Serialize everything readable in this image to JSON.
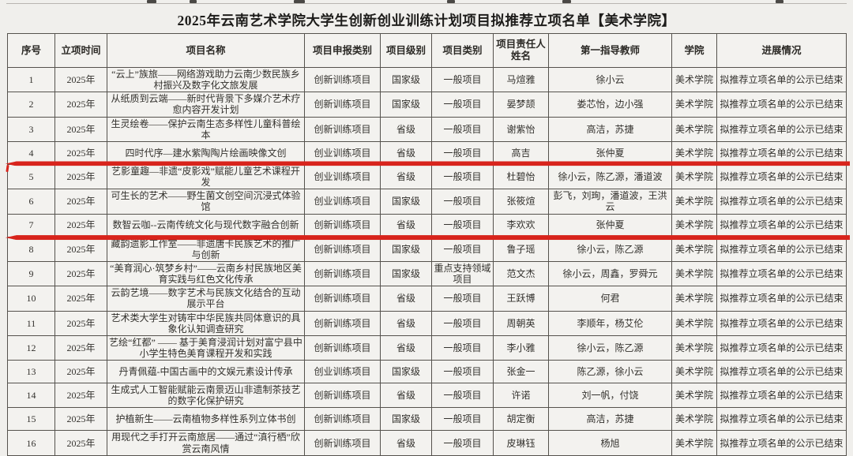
{
  "page": {
    "title": "2025年云南艺术学院大学生创新创业训练计划项目拟推荐立项名单【美术学院】"
  },
  "table": {
    "headers": [
      "序号",
      "立项时间",
      "项目名称",
      "项目申报类别",
      "项目级别",
      "项目类别",
      "项目责任人姓名",
      "第一指导教师",
      "学院",
      "进展情况"
    ],
    "rows": [
      [
        "1",
        "2025年",
        "“云上”族旅——网络游戏助力云南少数民族乡村振兴及数字化文旅发展",
        "创新训练项目",
        "国家级",
        "一般项目",
        "马煊雅",
        "徐小云",
        "美术学院",
        "拟推荐立项名单的公示已结束"
      ],
      [
        "2",
        "2025年",
        "从纸质到云端——新时代背景下多媒介艺术疗愈内容开发计划",
        "创新训练项目",
        "国家级",
        "一般项目",
        "晏梦颉",
        "娄芯怡，边小强",
        "美术学院",
        "拟推荐立项名单的公示已结束"
      ],
      [
        "3",
        "2025年",
        "生灵绘卷——保护云南生态多样性儿童科普绘本",
        "创新训练项目",
        "省级",
        "一般项目",
        "谢紫怡",
        "高洁，苏捷",
        "美术学院",
        "拟推荐立项名单的公示已结束"
      ],
      [
        "4",
        "2025年",
        "四时代序—建水紫陶陶片绘画映像文创",
        "创业训练项目",
        "省级",
        "一般项目",
        "高吉",
        "张仲夏",
        "美术学院",
        "拟推荐立项名单的公示已结束"
      ],
      [
        "5",
        "2025年",
        "艺影童趣—非遗“皮影戏”赋能儿童艺术课程开发",
        "创业训练项目",
        "省级",
        "一般项目",
        "杜碧怡",
        "徐小云，陈乙源，潘道波",
        "美术学院",
        "拟推荐立项名单的公示已结束"
      ],
      [
        "6",
        "2025年",
        "可生长的艺术——野生菌文创空间沉浸式体验馆",
        "创业训练项目",
        "国家级",
        "一般项目",
        "张筱煊",
        "彭飞，刘珣，潘道波，王洪云",
        "美术学院",
        "拟推荐立项名单的公示已结束"
      ],
      [
        "7",
        "2025年",
        "数智云咖--云南传统文化与现代数字融合创新",
        "创新训练项目",
        "省级",
        "一般项目",
        "李欢欢",
        "张仲夏",
        "美术学院",
        "拟推荐立项名单的公示已结束"
      ],
      [
        "8",
        "2025年",
        "藏韵遗影工作室——非遗唐卡民族艺术的推广与创新",
        "创新训练项目",
        "国家级",
        "一般项目",
        "鲁子瑶",
        "徐小云，陈乙源",
        "美术学院",
        "拟推荐立项名单的公示已结束"
      ],
      [
        "9",
        "2025年",
        "“美育润心·筑梦乡村”——云南乡村民族地区美育实践与红色文化传承",
        "创新训练项目",
        "国家级",
        "重点支持领域项目",
        "范文杰",
        "徐小云，周鑫，罗舜元",
        "美术学院",
        "拟推荐立项名单的公示已结束"
      ],
      [
        "10",
        "2025年",
        "云韵艺境——数字艺术与民族文化结合的互动展示平台",
        "创新训练项目",
        "省级",
        "一般项目",
        "王跃博",
        "何君",
        "美术学院",
        "拟推荐立项名单的公示已结束"
      ],
      [
        "11",
        "2025年",
        "艺术类大学生对铸牢中华民族共同体意识的具象化认知调查研究",
        "创新训练项目",
        "省级",
        "一般项目",
        "周朝英",
        "李顺年，杨艾伦",
        "美术学院",
        "拟推荐立项名单的公示已结束"
      ],
      [
        "12",
        "2025年",
        "艺绘“红都” —— 基于美育浸润计划对富宁县中小学生特色美育课程开发和实践",
        "创新训练项目",
        "省级",
        "一般项目",
        "李小雅",
        "徐小云，陈乙源",
        "美术学院",
        "拟推荐立项名单的公示已结束"
      ],
      [
        "13",
        "2025年",
        "丹青佩蕴-中国古画中的文娱元素设计传承",
        "创业训练项目",
        "国家级",
        "一般项目",
        "张金一",
        "陈乙源，徐小云",
        "美术学院",
        "拟推荐立项名单的公示已结束"
      ],
      [
        "14",
        "2025年",
        "生成式人工智能赋能云南景迈山非遗制茶技艺的数字化保护研究",
        "创新训练项目",
        "省级",
        "一般项目",
        "许诺",
        "刘一帆，付饶",
        "美术学院",
        "拟推荐立项名单的公示已结束"
      ],
      [
        "15",
        "2025年",
        "护植新生——云南植物多样性系列立体书创",
        "创新训练项目",
        "国家级",
        "一般项目",
        "胡定衡",
        "高洁，苏捷",
        "美术学院",
        "拟推荐立项名单的公示已结束"
      ],
      [
        "16",
        "2025年",
        "用现代之手打开云南旅居——通过“滇行栖”欣赏云南风情",
        "创新训练项目",
        "省级",
        "一般项目",
        "皮琳钰",
        "杨旭",
        "美术学院",
        "拟推荐立项名单的公示已结束"
      ]
    ]
  },
  "annotation": {
    "highlight_color": "#d8241c",
    "highlight_first_row": "5",
    "highlight_last_row": "7"
  }
}
